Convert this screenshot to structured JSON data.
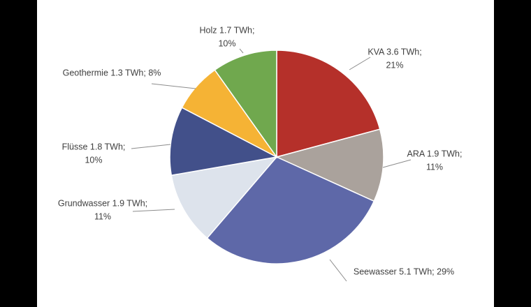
{
  "chart_data": {
    "type": "pie",
    "values": [
      3.6,
      1.9,
      5.1,
      1.9,
      1.8,
      1.3,
      1.7
    ],
    "value_labels": [
      [
        "KVA 3.6 TWh;",
        "21%"
      ],
      [
        "ARA 1.9 TWh;",
        "11%"
      ],
      [
        "Seewasser 5.1 TWh; 29%"
      ],
      [
        "Grundwasser 1.9 TWh;",
        "11%"
      ],
      [
        "Flüsse 1.8 TWh;",
        "10%"
      ],
      [
        "Geothermie 1.3 TWh; 8%"
      ],
      [
        "Holz 1.7 TWh;",
        "10%"
      ]
    ],
    "colors": [
      "#b5302a",
      "#aaa29c",
      "#5e68a8",
      "#dde3ec",
      "#42508a",
      "#f5b335",
      "#70a84e"
    ]
  }
}
